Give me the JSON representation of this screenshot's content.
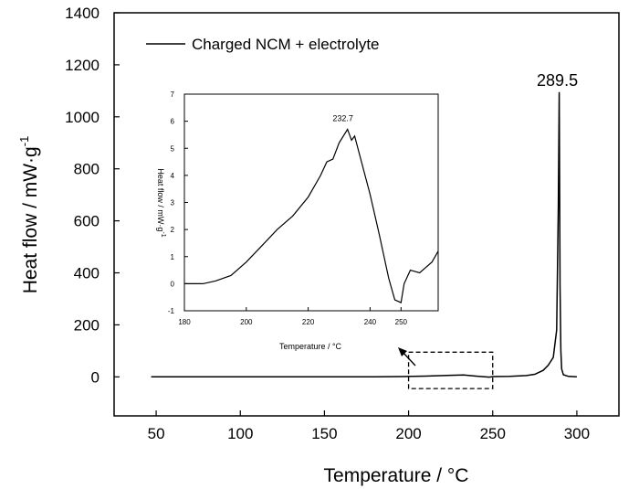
{
  "chart_data": [
    {
      "type": "line",
      "xlabel": "Temperature / °C",
      "ylabel": "Heat flow / mW·g",
      "ylabel_sup": "-1",
      "xlim": [
        25,
        325
      ],
      "ylim": [
        -150,
        1400
      ],
      "xticks": [
        50,
        100,
        150,
        200,
        250,
        300
      ],
      "yticks": [
        0,
        200,
        400,
        600,
        800,
        1000,
        1200,
        1400
      ],
      "legend": {
        "position": "top-left",
        "entries": [
          "Charged NCM + electrolyte"
        ]
      },
      "annotations": [
        {
          "text": "289.5",
          "x": 289.5,
          "y": 1095
        }
      ],
      "highlight_box": {
        "x": [
          200,
          250
        ],
        "y": [
          -45,
          95
        ]
      },
      "series": [
        {
          "name": "Charged NCM + electrolyte",
          "x": [
            47,
            150,
            180,
            195,
            210,
            225,
            232.7,
            240,
            248,
            250,
            260,
            270,
            275,
            280,
            283,
            286,
            288,
            289,
            289.5,
            290,
            290.5,
            291,
            292,
            295,
            300
          ],
          "y": [
            0,
            0,
            0,
            1,
            3,
            6,
            7,
            3,
            -1,
            1,
            2,
            5,
            10,
            25,
            45,
            75,
            180,
            650,
            1095,
            350,
            100,
            30,
            8,
            2,
            0
          ]
        }
      ]
    },
    {
      "type": "line",
      "xlabel": "Temperature / °C",
      "ylabel": "Heat flow / mW·g",
      "ylabel_sup": "-1",
      "xlim": [
        180,
        262
      ],
      "ylim": [
        -1,
        7
      ],
      "xticks": [
        180,
        200,
        220,
        240,
        250
      ],
      "yticks": [
        -1,
        0,
        1,
        2,
        3,
        4,
        5,
        6,
        7
      ],
      "annotations": [
        {
          "text": "232.7",
          "x": 232.7,
          "y": 5.7
        }
      ],
      "series": [
        {
          "x": [
            180,
            186,
            190,
            195,
            200,
            205,
            210,
            215,
            220,
            224,
            226,
            228,
            230,
            232.7,
            234,
            235,
            237,
            240,
            243,
            246,
            248,
            250,
            251,
            253,
            256,
            260,
            262
          ],
          "y": [
            0,
            0,
            0.1,
            0.3,
            0.8,
            1.4,
            2.0,
            2.5,
            3.2,
            4.0,
            4.5,
            4.6,
            5.2,
            5.7,
            5.3,
            5.45,
            4.6,
            3.3,
            1.8,
            0.2,
            -0.6,
            -0.7,
            0,
            0.5,
            0.4,
            0.8,
            1.2
          ]
        }
      ]
    }
  ]
}
